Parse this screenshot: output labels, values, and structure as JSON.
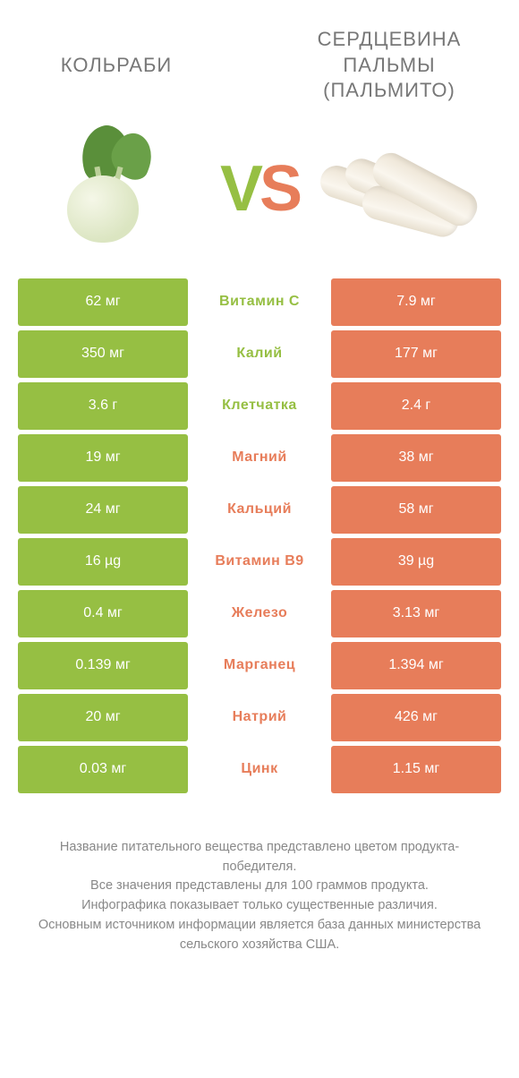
{
  "titles": {
    "left": "КОЛЬРАБИ",
    "right": "СЕРДЦЕВИНА ПАЛЬМЫ (ПАЛЬМИТО)"
  },
  "vs": {
    "v": "V",
    "s": "S"
  },
  "colors": {
    "green": "#96bf43",
    "orange": "#e77d5a"
  },
  "rows": [
    {
      "left": "62 мг",
      "label": "Витамин C",
      "right": "7.9 мг",
      "winner": "left"
    },
    {
      "left": "350 мг",
      "label": "Калий",
      "right": "177 мг",
      "winner": "left"
    },
    {
      "left": "3.6 г",
      "label": "Клетчатка",
      "right": "2.4 г",
      "winner": "left"
    },
    {
      "left": "19 мг",
      "label": "Магний",
      "right": "38 мг",
      "winner": "right"
    },
    {
      "left": "24 мг",
      "label": "Кальций",
      "right": "58 мг",
      "winner": "right"
    },
    {
      "left": "16 µg",
      "label": "Витамин B9",
      "right": "39 µg",
      "winner": "right"
    },
    {
      "left": "0.4 мг",
      "label": "Железо",
      "right": "3.13 мг",
      "winner": "right"
    },
    {
      "left": "0.139 мг",
      "label": "Марганец",
      "right": "1.394 мг",
      "winner": "right"
    },
    {
      "left": "20 мг",
      "label": "Натрий",
      "right": "426 мг",
      "winner": "right"
    },
    {
      "left": "0.03 мг",
      "label": "Цинк",
      "right": "1.15 мг",
      "winner": "right"
    }
  ],
  "footer": {
    "l1": "Название питательного вещества представлено цветом продукта-победителя.",
    "l2": "Все значения представлены для 100 граммов продукта.",
    "l3": "Инфографика показывает только существенные различия.",
    "l4": "Основным источником информации является база данных министерства сельского хозяйства США."
  }
}
